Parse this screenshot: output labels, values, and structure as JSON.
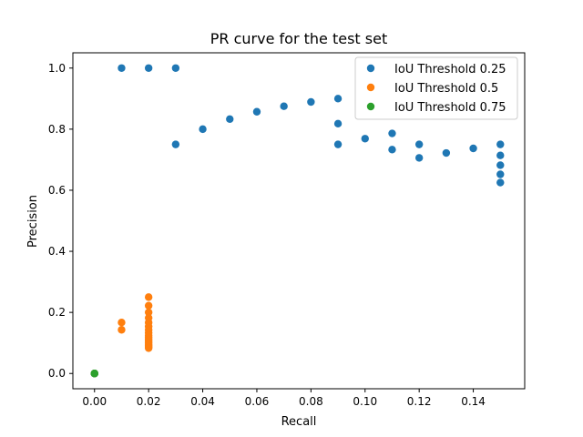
{
  "chart_data": {
    "type": "scatter",
    "title": "PR curve for the test set",
    "xlabel": "Recall",
    "ylabel": "Precision",
    "xlim": [
      -0.008,
      0.159
    ],
    "ylim": [
      -0.05,
      1.05
    ],
    "xticks": [
      0.0,
      0.02,
      0.04,
      0.06,
      0.08,
      0.1,
      0.12,
      0.14
    ],
    "xtick_labels": [
      "0.00",
      "0.02",
      "0.04",
      "0.06",
      "0.08",
      "0.10",
      "0.12",
      "0.14"
    ],
    "yticks": [
      0.0,
      0.2,
      0.4,
      0.6,
      0.8,
      1.0
    ],
    "ytick_labels": [
      "0.0",
      "0.2",
      "0.4",
      "0.6",
      "0.8",
      "1.0"
    ],
    "grid": false,
    "legend_position": "top-right",
    "series": [
      {
        "name": "IoU Threshold 0.25",
        "color": "#1f77b4",
        "points": [
          [
            0.0,
            0.0
          ],
          [
            0.01,
            1.0
          ],
          [
            0.02,
            1.0
          ],
          [
            0.03,
            1.0
          ],
          [
            0.03,
            0.75
          ],
          [
            0.04,
            0.8
          ],
          [
            0.05,
            0.833
          ],
          [
            0.06,
            0.857
          ],
          [
            0.07,
            0.875
          ],
          [
            0.08,
            0.889
          ],
          [
            0.09,
            0.9
          ],
          [
            0.09,
            0.818
          ],
          [
            0.09,
            0.75
          ],
          [
            0.1,
            0.769
          ],
          [
            0.11,
            0.786
          ],
          [
            0.11,
            0.733
          ],
          [
            0.12,
            0.75
          ],
          [
            0.12,
            0.706
          ],
          [
            0.13,
            0.722
          ],
          [
            0.14,
            0.737
          ],
          [
            0.15,
            0.75
          ],
          [
            0.15,
            0.714
          ],
          [
            0.15,
            0.682
          ],
          [
            0.15,
            0.652
          ],
          [
            0.15,
            0.625
          ]
        ]
      },
      {
        "name": "IoU Threshold 0.5",
        "color": "#ff7f0e",
        "points": [
          [
            0.0,
            0.0
          ],
          [
            0.01,
            0.167
          ],
          [
            0.01,
            0.143
          ],
          [
            0.02,
            0.25
          ],
          [
            0.02,
            0.222
          ],
          [
            0.02,
            0.2
          ],
          [
            0.02,
            0.182
          ],
          [
            0.02,
            0.167
          ],
          [
            0.02,
            0.154
          ],
          [
            0.02,
            0.143
          ],
          [
            0.02,
            0.133
          ],
          [
            0.02,
            0.125
          ],
          [
            0.02,
            0.118
          ],
          [
            0.02,
            0.111
          ],
          [
            0.02,
            0.105
          ],
          [
            0.02,
            0.1
          ],
          [
            0.02,
            0.095
          ],
          [
            0.02,
            0.091
          ],
          [
            0.02,
            0.087
          ],
          [
            0.02,
            0.083
          ]
        ]
      },
      {
        "name": "IoU Threshold 0.75",
        "color": "#2ca02c",
        "points": [
          [
            0.0,
            0.0
          ],
          [
            0.0,
            0.0
          ],
          [
            0.0,
            0.0
          ]
        ]
      }
    ]
  }
}
